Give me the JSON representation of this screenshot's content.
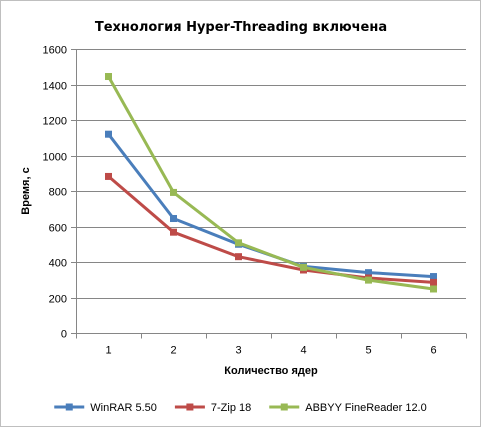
{
  "chart_data": {
    "type": "line",
    "title": "Технология Hyper-Threading включена",
    "xlabel": "Количество ядер",
    "ylabel": "Время, с",
    "x": [
      1,
      2,
      3,
      4,
      5,
      6
    ],
    "x_tick_labels": [
      "1",
      "2",
      "3",
      "4",
      "5",
      "6"
    ],
    "ylim": [
      0,
      1600
    ],
    "y_ticks": [
      0,
      200,
      400,
      600,
      800,
      1000,
      1200,
      1400,
      1600
    ],
    "y_tick_labels": [
      "0",
      "200",
      "400",
      "600",
      "800",
      "1000",
      "1200",
      "1400",
      "1600"
    ],
    "grid": "horizontal",
    "legend_position": "bottom",
    "series": [
      {
        "name": "WinRAR 5.50",
        "color": "#4a7ebb",
        "marker": "square",
        "values": [
          1120,
          645,
          500,
          375,
          340,
          318
        ]
      },
      {
        "name": "7-Zip 18",
        "color": "#be4b48",
        "marker": "square",
        "values": [
          882,
          568,
          430,
          355,
          310,
          285
        ]
      },
      {
        "name": "ABBYY FineReader 12.0",
        "color": "#98b954",
        "marker": "square",
        "values": [
          1445,
          792,
          508,
          370,
          298,
          248
        ]
      }
    ]
  }
}
